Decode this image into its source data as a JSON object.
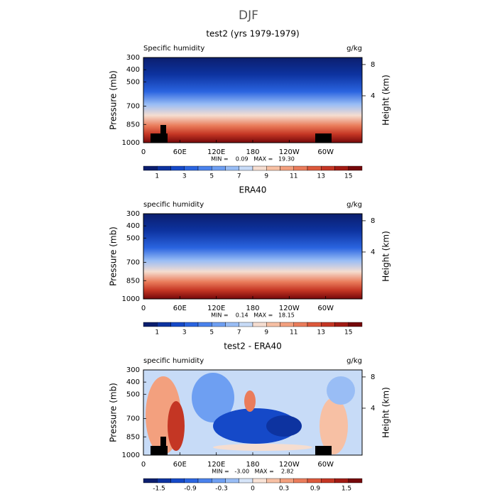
{
  "title": "DJF",
  "chart_data": [
    {
      "type": "contour",
      "title": "test2 (yrs 1979-1979)",
      "left_label": "Specific humidity",
      "right_label": "g/kg",
      "ylabel": "Pressure (mb)",
      "y2label": "Height (km)",
      "stats": "MIN =    0.09   MAX =   19.30",
      "xlim": [
        0,
        360
      ],
      "xticks": [
        0,
        {
          "value": 60,
          "label": "60E"
        },
        {
          "value": 120,
          "label": "120E"
        },
        180,
        {
          "value": 240,
          "label": "120W"
        },
        {
          "value": 300,
          "label": "60W"
        }
      ],
      "ylim": [
        1000,
        300
      ],
      "yticks": [
        300,
        400,
        500,
        700,
        850,
        1000
      ],
      "y2lim": [
        -2,
        8.9
      ],
      "y2ticks": [
        4,
        8
      ],
      "colorbar": {
        "labels": [
          1,
          3,
          5,
          7,
          9,
          11,
          13,
          15
        ],
        "colors": [
          "#0b1e6e",
          "#0d33a0",
          "#1549c8",
          "#2a64e0",
          "#4a82ec",
          "#6e9ff2",
          "#99bdf5",
          "#c7dbf7",
          "#f5ddd0",
          "#f7c0a4",
          "#f3a07e",
          "#ea7c5b",
          "#dc583b",
          "#c43624",
          "#a21b14",
          "#75080a"
        ]
      }
    },
    {
      "type": "contour",
      "title": "ERA40",
      "left_label": "specific humidity",
      "right_label": "g/kg",
      "ylabel": "Pressure (mb)",
      "y2label": "Height (km)",
      "stats": "MIN =    0.14   MAX =   18.15",
      "xlim": [
        0,
        360
      ],
      "xticks": [
        0,
        {
          "value": 60,
          "label": "60E"
        },
        {
          "value": 120,
          "label": "120E"
        },
        180,
        {
          "value": 240,
          "label": "120W"
        },
        {
          "value": 300,
          "label": "60W"
        }
      ],
      "ylim": [
        1000,
        300
      ],
      "yticks": [
        300,
        400,
        500,
        700,
        850,
        1000
      ],
      "y2lim": [
        -2,
        8.9
      ],
      "y2ticks": [
        4,
        8
      ],
      "colorbar": {
        "labels": [
          1,
          3,
          5,
          7,
          9,
          11,
          13,
          15
        ],
        "colors": [
          "#0b1e6e",
          "#0d33a0",
          "#1549c8",
          "#2a64e0",
          "#4a82ec",
          "#6e9ff2",
          "#99bdf5",
          "#c7dbf7",
          "#f5ddd0",
          "#f7c0a4",
          "#f3a07e",
          "#ea7c5b",
          "#dc583b",
          "#c43624",
          "#a21b14",
          "#75080a"
        ]
      }
    },
    {
      "type": "contour-diff",
      "title": "test2 - ERA40",
      "left_label": "specific humidity",
      "right_label": "g/kg",
      "ylabel": "Pressure (mb)",
      "y2label": "Height (km)",
      "stats": "MIN =   -3.00   MAX =    2.82",
      "xlim": [
        0,
        360
      ],
      "xticks": [
        0,
        {
          "value": 60,
          "label": "60E"
        },
        {
          "value": 120,
          "label": "120E"
        },
        180,
        {
          "value": 240,
          "label": "120W"
        },
        {
          "value": 300,
          "label": "60W"
        }
      ],
      "ylim": [
        1000,
        300
      ],
      "yticks": [
        300,
        400,
        500,
        700,
        850,
        1000
      ],
      "y2lim": [
        -2,
        8.9
      ],
      "y2ticks": [
        4,
        8
      ],
      "colorbar": {
        "labels": [
          -1.5,
          -0.9,
          -0.3,
          0,
          0.3,
          0.9,
          1.5
        ],
        "colors": [
          "#0b1e6e",
          "#0d33a0",
          "#1549c8",
          "#2a64e0",
          "#4a82ec",
          "#6e9ff2",
          "#99bdf5",
          "#d6e4f8",
          "#f8e2d6",
          "#f7c0a4",
          "#f3a07e",
          "#ea7c5b",
          "#dc583b",
          "#c43624",
          "#a21b14",
          "#75080a"
        ]
      }
    }
  ]
}
